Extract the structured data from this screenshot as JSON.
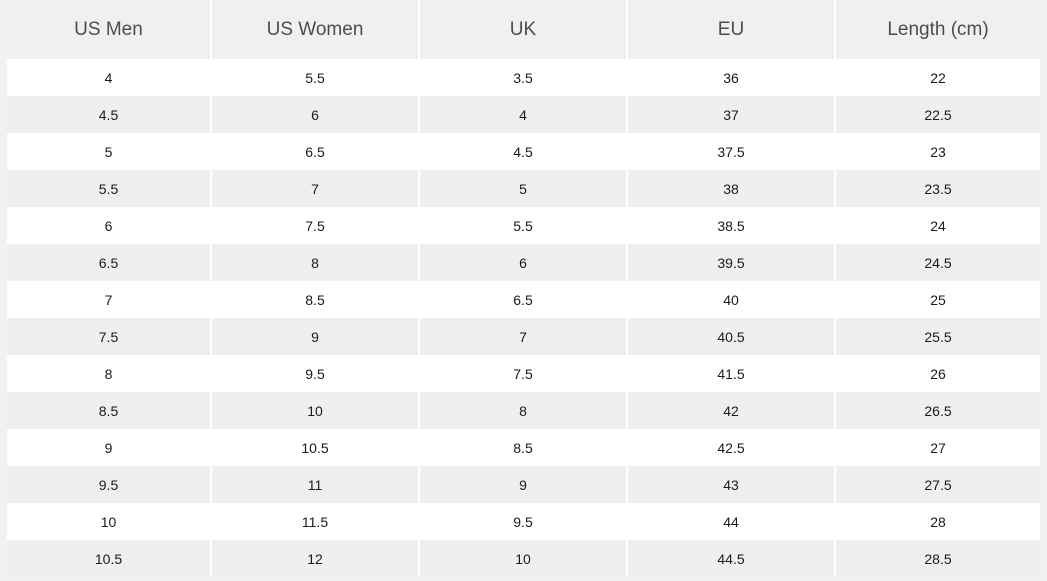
{
  "size_chart": {
    "headers": [
      "US Men",
      "US Women",
      "UK",
      "EU",
      "Length (cm)"
    ],
    "rows": [
      [
        "4",
        "5.5",
        "3.5",
        "36",
        "22"
      ],
      [
        "4.5",
        "6",
        "4",
        "37",
        "22.5"
      ],
      [
        "5",
        "6.5",
        "4.5",
        "37.5",
        "23"
      ],
      [
        "5.5",
        "7",
        "5",
        "38",
        "23.5"
      ],
      [
        "6",
        "7.5",
        "5.5",
        "38.5",
        "24"
      ],
      [
        "6.5",
        "8",
        "6",
        "39.5",
        "24.5"
      ],
      [
        "7",
        "8.5",
        "6.5",
        "40",
        "25"
      ],
      [
        "7.5",
        "9",
        "7",
        "40.5",
        "25.5"
      ],
      [
        "8",
        "9.5",
        "7.5",
        "41.5",
        "26"
      ],
      [
        "8.5",
        "10",
        "8",
        "42",
        "26.5"
      ],
      [
        "9",
        "10.5",
        "8.5",
        "42.5",
        "27"
      ],
      [
        "9.5",
        "11",
        "9",
        "43",
        "27.5"
      ],
      [
        "10",
        "11.5",
        "9.5",
        "44",
        "28"
      ],
      [
        "10.5",
        "12",
        "10",
        "44.5",
        "28.5"
      ]
    ]
  }
}
